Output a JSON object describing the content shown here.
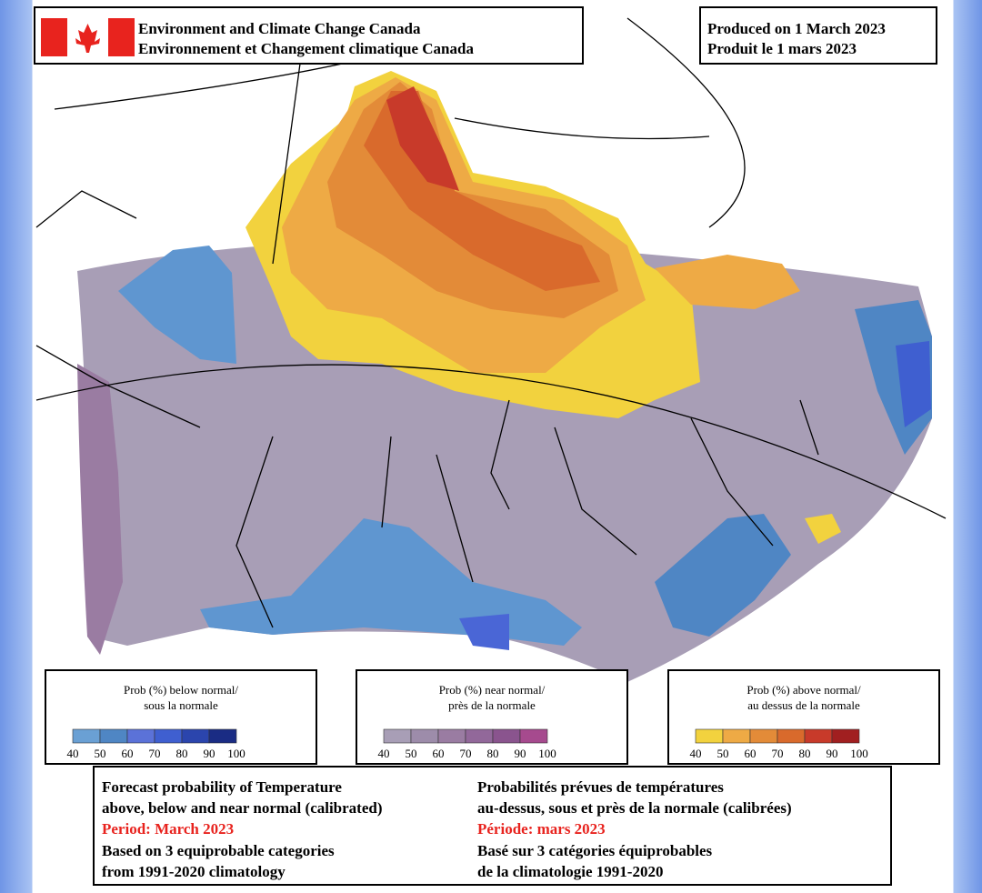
{
  "header": {
    "agency": [
      "Environment and Climate Change Canada",
      "Environnement et Changement climatique Canada"
    ],
    "produced": [
      "Produced on 1 March 2023",
      "Produit le 1 mars 2023"
    ]
  },
  "legends": [
    {
      "title": [
        "Prob (%) below normal/",
        "sous la normale"
      ],
      "colors": [
        "#6aa0d4",
        "#4f86c4",
        "#5b72d8",
        "#3f5fd0",
        "#2b45ad",
        "#1a2c84"
      ],
      "labels": [
        40,
        50,
        60,
        70,
        80,
        90,
        100
      ]
    },
    {
      "title": [
        "Prob (%) near normal/",
        "près de la normale"
      ],
      "colors": [
        "#a89eb6",
        "#9d8caa",
        "#9a7ca2",
        "#92689a",
        "#8a548e",
        "#a64a8e"
      ],
      "labels": [
        40,
        50,
        60,
        70,
        80,
        90,
        100
      ]
    },
    {
      "title": [
        "Prob (%) above normal/",
        "au dessus de la normale"
      ],
      "colors": [
        "#f2d23e",
        "#eeaa45",
        "#e38b38",
        "#d96a2c",
        "#c83a2a",
        "#a11f20"
      ],
      "labels": [
        40,
        50,
        60,
        70,
        80,
        90,
        100
      ]
    }
  ],
  "footer": {
    "period_color": "#e8231e",
    "left": {
      "description": [
        "Forecast probability of Temperature",
        "above, below and near normal (calibrated)"
      ],
      "period": "Period: March 2023",
      "basis": [
        "Based on 3 equiprobable categories",
        " from 1991-2020 climatology"
      ]
    },
    "right": {
      "description": [
        "Probabilités prévues de températures",
        "au-dessus, sous et près de la normale (calibrées)"
      ],
      "period": "Période: mars 2023",
      "basis": [
        "Basé sur 3 catégories équiprobables",
        "de la climatologie 1991-2020"
      ]
    }
  }
}
